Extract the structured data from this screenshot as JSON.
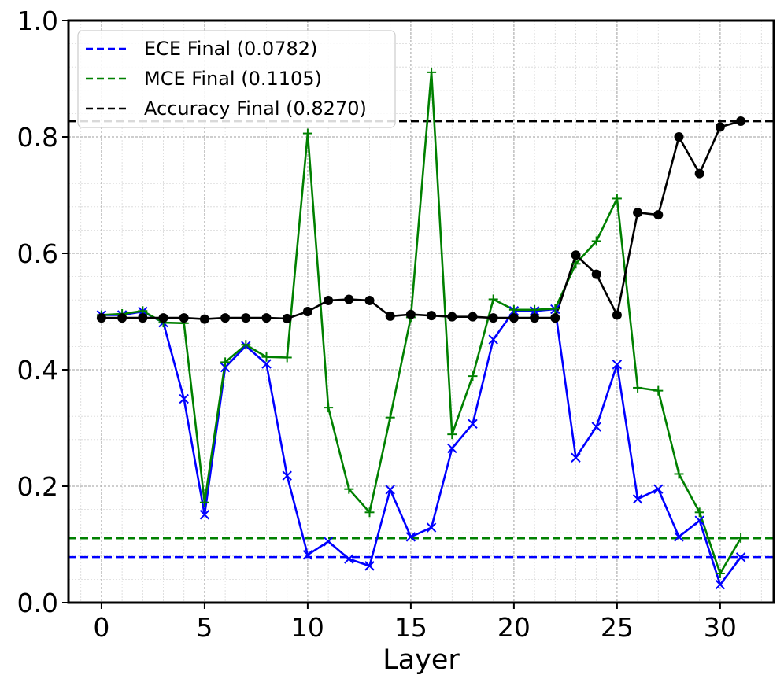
{
  "chart_data": {
    "type": "line",
    "title": "",
    "xlabel": "Layer",
    "ylabel": "",
    "xlim": [
      -1.6,
      32.6
    ],
    "ylim": [
      0.0,
      1.0
    ],
    "xticks": [
      0,
      5,
      10,
      15,
      20,
      25,
      30
    ],
    "yticks": [
      0.0,
      0.2,
      0.4,
      0.6,
      0.8,
      1.0
    ],
    "xtick_labels": [
      "0",
      "5",
      "10",
      "15",
      "20",
      "25",
      "30"
    ],
    "ytick_labels": [
      "0.0",
      "0.2",
      "0.4",
      "0.6",
      "0.8",
      "1.0"
    ],
    "grid": true,
    "minor_grid": true,
    "legend_position": "top-left",
    "x": [
      0,
      1,
      2,
      3,
      4,
      5,
      6,
      7,
      8,
      9,
      10,
      11,
      12,
      13,
      14,
      15,
      16,
      17,
      18,
      19,
      20,
      21,
      22,
      23,
      24,
      25,
      26,
      27,
      28,
      29,
      30,
      31
    ],
    "series": [
      {
        "key": "ece",
        "color": "#0000ff",
        "marker": "x",
        "values": [
          0.494,
          0.494,
          0.5,
          0.481,
          0.35,
          0.151,
          0.404,
          0.441,
          0.41,
          0.218,
          0.082,
          0.105,
          0.075,
          0.063,
          0.194,
          0.113,
          0.129,
          0.265,
          0.307,
          0.452,
          0.501,
          0.501,
          0.504,
          0.249,
          0.302,
          0.409,
          0.178,
          0.195,
          0.113,
          0.141,
          0.031,
          0.078
        ]
      },
      {
        "key": "mce",
        "color": "#008000",
        "marker": "plus",
        "values": [
          0.494,
          0.496,
          0.501,
          0.481,
          0.48,
          0.172,
          0.413,
          0.443,
          0.422,
          0.421,
          0.806,
          0.335,
          0.195,
          0.155,
          0.318,
          0.49,
          0.911,
          0.289,
          0.389,
          0.521,
          0.503,
          0.503,
          0.505,
          0.582,
          0.621,
          0.694,
          0.369,
          0.364,
          0.221,
          0.155,
          0.05,
          0.111
        ]
      },
      {
        "key": "accuracy",
        "color": "#000000",
        "marker": "circle",
        "values": [
          0.489,
          0.489,
          0.489,
          0.489,
          0.489,
          0.487,
          0.489,
          0.489,
          0.489,
          0.488,
          0.5,
          0.519,
          0.521,
          0.519,
          0.492,
          0.495,
          0.493,
          0.491,
          0.491,
          0.489,
          0.489,
          0.489,
          0.489,
          0.597,
          0.564,
          0.494,
          0.67,
          0.666,
          0.8,
          0.737,
          0.817,
          0.827
        ]
      }
    ],
    "reference_lines": [
      {
        "key": "ece_final",
        "label": "ECE Final (0.0782)",
        "value": 0.0782,
        "color": "#0000ff",
        "style": "dashed"
      },
      {
        "key": "mce_final",
        "label": "MCE Final (0.1105)",
        "value": 0.1105,
        "color": "#008000",
        "style": "dashed"
      },
      {
        "key": "acc_final",
        "label": "Accuracy Final (0.8270)",
        "value": 0.827,
        "color": "#000000",
        "style": "dashed"
      }
    ]
  }
}
